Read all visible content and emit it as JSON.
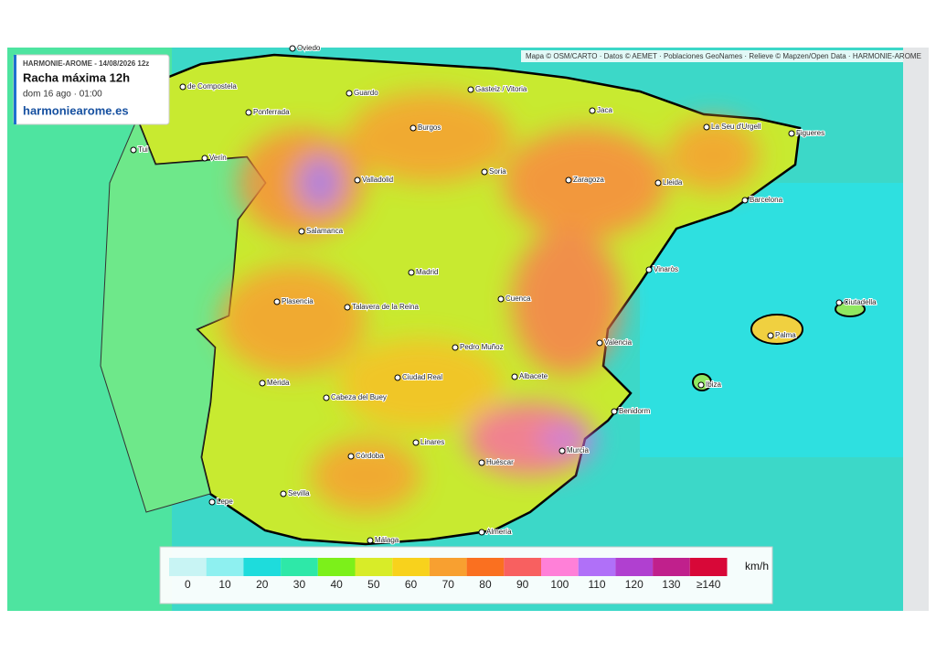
{
  "header": {
    "model_run": "HARMONIE-AROME - 14/08/2026 12z",
    "title": "Racha máxima 12h",
    "valid_time": "dom 16 ago · 01:00",
    "site": "harmoniearome.es"
  },
  "attribution": "Mapa © OSM/CARTO · Datos © AEMET · Poblaciones GeoNames · Relieve © Mapzen/Open Data · HARMONIE-AROME",
  "cities": [
    "Oviedo",
    "de Compostela",
    "Guardo",
    "Gasteiz / Vitoria",
    "Jaca",
    "Ponferrada",
    "Burgos",
    "La Seu d'Urgell",
    "Figueres",
    "Tui",
    "Verín",
    "Soria",
    "Valladolid",
    "Zaragoza",
    "Lleida",
    "Barcelona",
    "Salamanca",
    "Madrid",
    "Vinaròs",
    "Plasencia",
    "Talavera de la Reina",
    "Cuenca",
    "Ciutadella",
    "Palma",
    "Valencia",
    "Pedro Muñoz",
    "Mérida",
    "Ciudad Real",
    "Albacete",
    "Ibiza",
    "Cabeza del Buey",
    "Benidorm",
    "Linares",
    "Murcia",
    "Córdoba",
    "Huéscar",
    "Lepe",
    "Sevilla",
    "Almería",
    "Málaga"
  ],
  "legend": {
    "unit": "km/h",
    "items": [
      {
        "label": 0,
        "color": "#c8f4f4"
      },
      {
        "label": 10,
        "color": "#8ef0f0"
      },
      {
        "label": 20,
        "color": "#1edcdc"
      },
      {
        "label": 30,
        "color": "#2ee8a8"
      },
      {
        "label": 40,
        "color": "#7cf01a"
      },
      {
        "label": 50,
        "color": "#d8ec28"
      },
      {
        "label": 60,
        "color": "#f8d21c"
      },
      {
        "label": 70,
        "color": "#f8a030"
      },
      {
        "label": 80,
        "color": "#fa7020"
      },
      {
        "label": 90,
        "color": "#f86060"
      },
      {
        "label": 100,
        "color": "#ff80d8"
      },
      {
        "label": 110,
        "color": "#b070f8"
      },
      {
        "label": 120,
        "color": "#b040d0"
      },
      {
        "label": 130,
        "color": "#c0208c"
      },
      {
        "label": "≥140",
        "color": "#d80838"
      }
    ]
  }
}
